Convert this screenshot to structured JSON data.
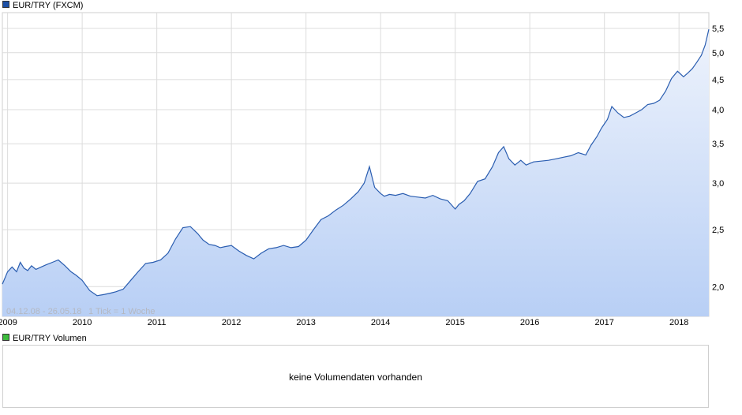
{
  "legend_price": {
    "label": "EUR/TRY (FXCM)",
    "color": "#1c4fa5"
  },
  "legend_volume": {
    "label": "EUR/TRY Volumen",
    "color": "#3dbb3d"
  },
  "range_label": "04.12.08 - 26.05.18",
  "tick_label": "1 Tick = 1 Woche",
  "volume_message": "keine Volumendaten vorhanden",
  "colors": {
    "line": "#2a5db0",
    "fill_top": "#eef3fc",
    "fill_bottom": "#b8cff5",
    "grid": "#dcdcdc"
  },
  "chart_data": {
    "type": "area",
    "scale": "log",
    "grid": true,
    "x_range": [
      2008.93,
      2018.4
    ],
    "ylim": [
      1.78,
      5.85
    ],
    "x_ticks": [
      {
        "label": "2009",
        "value": 2009
      },
      {
        "label": "2010",
        "value": 2010
      },
      {
        "label": "2011",
        "value": 2011
      },
      {
        "label": "2012",
        "value": 2012
      },
      {
        "label": "2013",
        "value": 2013
      },
      {
        "label": "2014",
        "value": 2014
      },
      {
        "label": "2015",
        "value": 2015
      },
      {
        "label": "2016",
        "value": 2016
      },
      {
        "label": "2017",
        "value": 2017
      },
      {
        "label": "2018",
        "value": 2018
      }
    ],
    "y_ticks": [
      {
        "label": "2,0",
        "value": 2.0
      },
      {
        "label": "2,5",
        "value": 2.5
      },
      {
        "label": "3,0",
        "value": 3.0
      },
      {
        "label": "3,5",
        "value": 3.5
      },
      {
        "label": "4,0",
        "value": 4.0
      },
      {
        "label": "4,5",
        "value": 4.5
      },
      {
        "label": "5,0",
        "value": 5.0
      },
      {
        "label": "5,5",
        "value": 5.5
      }
    ],
    "series": [
      {
        "x": [
          2008.93,
          2009.0,
          2009.06,
          2009.12,
          2009.17,
          2009.22,
          2009.27,
          2009.32,
          2009.38,
          2009.45,
          2009.52,
          2009.6,
          2009.68,
          2009.77,
          2009.85,
          2009.92,
          2010.0,
          2010.1,
          2010.2,
          2010.3,
          2010.38,
          2010.45,
          2010.55,
          2010.65,
          2010.75,
          2010.85,
          2010.95,
          2011.05,
          2011.15,
          2011.25,
          2011.35,
          2011.45,
          2011.55,
          2011.62,
          2011.7,
          2011.78,
          2011.85,
          2011.92,
          2012.0,
          2012.1,
          2012.2,
          2012.3,
          2012.4,
          2012.5,
          2012.6,
          2012.7,
          2012.8,
          2012.9,
          2013.0,
          2013.1,
          2013.2,
          2013.3,
          2013.4,
          2013.5,
          2013.6,
          2013.7,
          2013.78,
          2013.85,
          2013.92,
          2014.0,
          2014.05,
          2014.12,
          2014.2,
          2014.3,
          2014.4,
          2014.5,
          2014.6,
          2014.7,
          2014.8,
          2014.9,
          2015.0,
          2015.05,
          2015.12,
          2015.2,
          2015.3,
          2015.4,
          2015.5,
          2015.58,
          2015.65,
          2015.72,
          2015.8,
          2015.88,
          2015.95,
          2016.05,
          2016.15,
          2016.25,
          2016.35,
          2016.45,
          2016.55,
          2016.65,
          2016.75,
          2016.82,
          2016.9,
          2016.96,
          2017.04,
          2017.1,
          2017.18,
          2017.26,
          2017.34,
          2017.42,
          2017.5,
          2017.58,
          2017.66,
          2017.74,
          2017.82,
          2017.9,
          2017.98,
          2018.06,
          2018.12,
          2018.18,
          2018.24,
          2018.3,
          2018.35,
          2018.4
        ],
        "values": [
          2.02,
          2.12,
          2.16,
          2.12,
          2.2,
          2.15,
          2.13,
          2.17,
          2.14,
          2.16,
          2.18,
          2.2,
          2.22,
          2.17,
          2.12,
          2.09,
          2.05,
          1.97,
          1.93,
          1.94,
          1.95,
          1.96,
          1.98,
          2.05,
          2.12,
          2.19,
          2.2,
          2.22,
          2.28,
          2.41,
          2.52,
          2.53,
          2.46,
          2.4,
          2.36,
          2.35,
          2.33,
          2.34,
          2.35,
          2.3,
          2.26,
          2.23,
          2.28,
          2.32,
          2.33,
          2.35,
          2.33,
          2.34,
          2.4,
          2.5,
          2.6,
          2.64,
          2.7,
          2.75,
          2.82,
          2.9,
          3.0,
          3.2,
          2.95,
          2.88,
          2.85,
          2.87,
          2.86,
          2.88,
          2.85,
          2.84,
          2.83,
          2.86,
          2.82,
          2.8,
          2.71,
          2.76,
          2.8,
          2.88,
          3.02,
          3.05,
          3.2,
          3.38,
          3.46,
          3.3,
          3.22,
          3.28,
          3.22,
          3.26,
          3.27,
          3.28,
          3.3,
          3.32,
          3.34,
          3.38,
          3.35,
          3.48,
          3.6,
          3.72,
          3.85,
          4.05,
          3.95,
          3.88,
          3.9,
          3.95,
          4.0,
          4.08,
          4.1,
          4.15,
          4.3,
          4.52,
          4.65,
          4.55,
          4.62,
          4.7,
          4.82,
          4.95,
          5.15,
          5.48
        ]
      }
    ]
  }
}
